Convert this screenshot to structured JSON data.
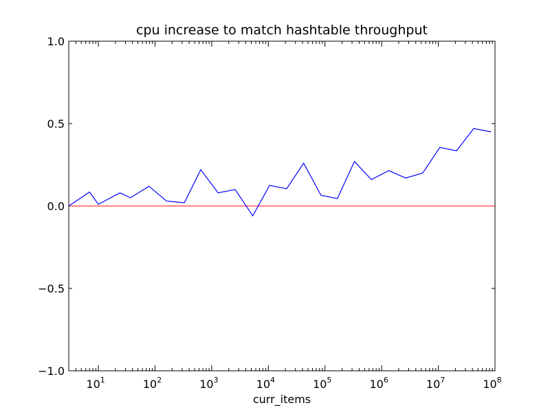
{
  "chart_data": {
    "type": "line",
    "title": "cpu increase to match hashtable throughput",
    "xlabel": "curr_items",
    "ylabel": "",
    "xscale": "log",
    "xlim": [
      3,
      100000000
    ],
    "ylim": [
      -1.0,
      1.0
    ],
    "grid": false,
    "legend": "none",
    "y_ticks": [
      {
        "value": -1.0,
        "label": "−1.0"
      },
      {
        "value": -0.5,
        "label": "−0.5"
      },
      {
        "value": 0.0,
        "label": "0.0"
      },
      {
        "value": 0.5,
        "label": "0.5"
      },
      {
        "value": 1.0,
        "label": "1.0"
      }
    ],
    "x_ticks": [
      {
        "value": 10,
        "base": "10",
        "exp": "1"
      },
      {
        "value": 100,
        "base": "10",
        "exp": "2"
      },
      {
        "value": 1000,
        "base": "10",
        "exp": "3"
      },
      {
        "value": 10000,
        "base": "10",
        "exp": "4"
      },
      {
        "value": 100000,
        "base": "10",
        "exp": "5"
      },
      {
        "value": 1000000,
        "base": "10",
        "exp": "6"
      },
      {
        "value": 10000000,
        "base": "10",
        "exp": "7"
      },
      {
        "value": 100000000,
        "base": "10",
        "exp": "8"
      }
    ],
    "series": [
      {
        "color": "#0000ff",
        "x": [
          3,
          7,
          10,
          24,
          37,
          78,
          160,
          330,
          640,
          1300,
          2600,
          5300,
          10500,
          21000,
          42000,
          85000,
          165000,
          330000,
          660000,
          1330000,
          2650000,
          5300000,
          10600000,
          21000000,
          42000000,
          85000000
        ],
        "y": [
          0.0,
          0.085,
          0.01,
          0.08,
          0.05,
          0.12,
          0.03,
          0.02,
          0.22,
          0.08,
          0.1,
          -0.06,
          0.125,
          0.105,
          0.26,
          0.065,
          0.045,
          0.27,
          0.16,
          0.215,
          0.17,
          0.2,
          0.355,
          0.335,
          0.47,
          0.45
        ]
      }
    ],
    "reference_line": {
      "y": 0.0,
      "color": "#ff0000"
    }
  }
}
